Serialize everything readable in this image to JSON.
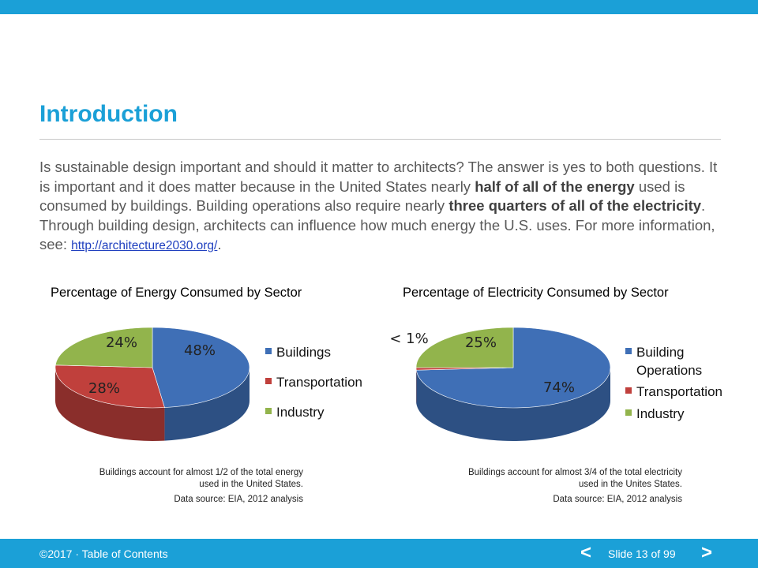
{
  "slide": {
    "title": "Introduction",
    "body_parts": [
      "Is sustainable design important and should it matter to architects? The answer is yes to both questions. It is important and it does matter because in the United States nearly ",
      "half of all of the energy",
      " used is consumed by buildings. Building operations also require nearly ",
      "three quarters of all of the electricity",
      ". Through building design, architects can influence how much energy the U.S. uses. For more information, see: ",
      "http://architecture2030.org/",
      "."
    ]
  },
  "chart_data": [
    {
      "type": "pie",
      "title": "Percentage of Energy Consumed by Sector",
      "categories": [
        "Buildings",
        "Transportation",
        "Industry"
      ],
      "values": [
        48,
        28,
        24
      ],
      "labels": [
        "48%",
        "28%",
        "24%"
      ],
      "colors": [
        "#3f6fb6",
        "#c0403c",
        "#92b44c"
      ],
      "legend_position": "right",
      "caption_lines": [
        "Buildings account for almost 1/2 of the total energy",
        "used in the United States.",
        "Data source: EIA, 2012 analysis"
      ]
    },
    {
      "type": "pie",
      "title": "Percentage of Electricity Consumed by Sector",
      "categories": [
        "Building Operations",
        "Transportation",
        "Industry"
      ],
      "values": [
        74,
        1,
        25
      ],
      "labels": [
        "74%",
        "< 1%",
        "25%"
      ],
      "colors": [
        "#3f6fb6",
        "#c0403c",
        "#92b44c"
      ],
      "legend_position": "right",
      "caption_lines": [
        "Buildings account for almost 3/4 of the total electricity",
        "used in the Unites States.",
        "Data source: EIA, 2012 analysis"
      ]
    }
  ],
  "footer": {
    "copyright": "©2017 ·",
    "toc_link": "Table of Contents",
    "prev": "<",
    "slide_indicator": "Slide 13 of 99",
    "next": ">"
  },
  "colors": {
    "accent": "#1ba0d7"
  }
}
